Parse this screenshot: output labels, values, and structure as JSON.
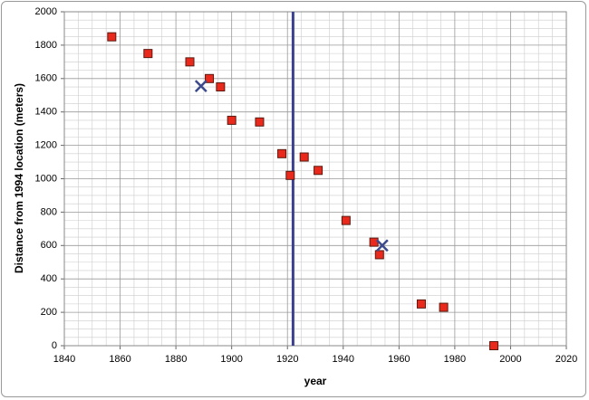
{
  "chart_data": {
    "type": "scatter",
    "x_label": "year",
    "y_label": "Distance from 1994 location (meters)",
    "xlim": [
      1840,
      2020
    ],
    "xticks": [
      1840,
      1860,
      1880,
      1900,
      1920,
      1940,
      1960,
      1980,
      2000,
      2020
    ],
    "ylim": [
      0,
      2000
    ],
    "yticks": [
      0,
      200,
      400,
      600,
      800,
      1000,
      1200,
      1400,
      1600,
      1800,
      2000
    ],
    "grid": true,
    "vline_x": 1922,
    "vline_color": "#3c3f8e",
    "series": [
      {
        "marker": "square",
        "color": "#e8291c",
        "x": [
          1857,
          1870,
          1885,
          1892,
          1896,
          1900,
          1910,
          1918,
          1921,
          1926,
          1931,
          1941,
          1951,
          1953,
          1968,
          1976,
          1994
        ],
        "values": [
          1850,
          1750,
          1700,
          1600,
          1550,
          1350,
          1340,
          1150,
          1020,
          1130,
          1050,
          750,
          620,
          545,
          250,
          230,
          0
        ]
      },
      {
        "marker": "x",
        "color": "#3c4a8c",
        "x": [
          1889,
          1954
        ],
        "values": [
          1555,
          600
        ]
      }
    ]
  }
}
